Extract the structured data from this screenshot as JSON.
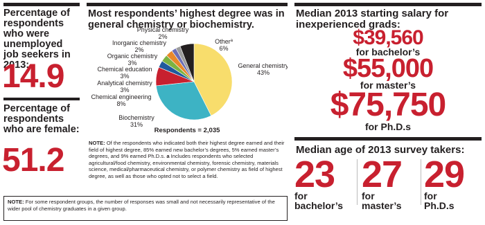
{
  "left": {
    "stats": [
      {
        "label": "Percentage of respondents who were unemployed job seekers in 2013:",
        "value": 14.9
      },
      {
        "label": "Percentage of respondents who are female:",
        "value": 51.2
      }
    ]
  },
  "chart_data": {
    "type": "pie",
    "title": "Most respondents’ highest degree was in general chemistry or biochemistry.",
    "categories": [
      "General chemistry",
      "Biochemistry",
      "Chemical engineering",
      "Analytical chemistry",
      "Chemical education",
      "Organic chemistry",
      "Inorganic chemistry",
      "Physical chemistry",
      "Other"
    ],
    "values": [
      43,
      31,
      8,
      3,
      3,
      3,
      2,
      2,
      6
    ],
    "value_labels": [
      "43%",
      "31%",
      "8%",
      "3%",
      "3%",
      "3%",
      "2%",
      "2%",
      "6%"
    ],
    "colors": [
      "#f8dd6c",
      "#3db3c4",
      "#c8202f",
      "#1f5a9e",
      "#7cb342",
      "#e8892b",
      "#6d6fb5",
      "#9c9c9c",
      "#231f20"
    ],
    "footnote_marker": "a",
    "respondents": "Respondents = 2,035",
    "note": {
      "label": "NOTE:",
      "text": "Of the respondents who indicated both their highest degree earned and their field of highest degree, 85% earned new bachelor’s degrees, 5% earned master’s degrees, and 9% earned Ph.D.s.",
      "marker": "a",
      "text2": "Includes respondents who selected agricultural/food chemistry, environmental chemistry, forensic chemistry, materials science, medical/pharmaceutical chemistry, or polymer chemistry as field of highest degree, as well as those who opted not to select a field."
    }
  },
  "salary": {
    "title": "Median 2013 starting salary for inexperienced grads:",
    "items": [
      {
        "value": "$39,560",
        "label": "for bachelor’s"
      },
      {
        "value": "$55,000",
        "label": "for master’s"
      },
      {
        "value": "$75,750",
        "label": "for Ph.D.s"
      }
    ]
  },
  "age": {
    "title": "Median age of 2013 survey takers:",
    "items": [
      {
        "value": 23,
        "label": "for bachelor’s"
      },
      {
        "value": 27,
        "label": "for master’s"
      },
      {
        "value": 29,
        "label": "for Ph.D.s"
      }
    ]
  },
  "footer_note": {
    "label": "NOTE:",
    "text": "For some respondent groups, the number of responses was small and not necessarily representative of the wider pool of chemistry graduates in a given group."
  }
}
